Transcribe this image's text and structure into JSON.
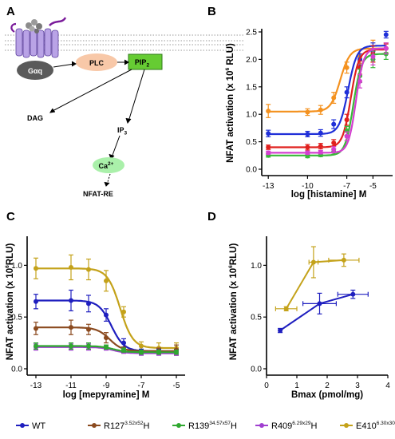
{
  "colors": {
    "WT": "#1f1fbf",
    "R127": "#8b4a1f",
    "R139": "#2fa82f",
    "R409": "#a03fd0",
    "E410": "#c4a21a",
    "orange": "#f4911e",
    "red": "#e0201e",
    "green": "#39b839",
    "magenta": "#d43fd0",
    "blue": "#1f2fd8"
  },
  "panel_A": {
    "letter": "A",
    "galpha": "Gαq",
    "plc": "PLC",
    "pip2": "PIP",
    "pip2_sub": "2",
    "dag": "DAG",
    "ip3": "IP",
    "ip3_sub": "3",
    "ca": "Ca",
    "ca_sup": "2+",
    "nfat": "NFAT-RE"
  },
  "panel_B": {
    "letter": "B",
    "ylabel_pre": "NFAT activation (x 10",
    "ylabel_sup": "6",
    "ylabel_post": " RLU)",
    "xlabel": "log [histamine] M"
  },
  "panel_C": {
    "letter": "C",
    "ylabel_pre": "NFAT activation (x 10",
    "ylabel_sup": "6",
    "ylabel_post": "RLU)",
    "xlabel": "log [mepyramine] M"
  },
  "panel_D": {
    "letter": "D",
    "ylabel_pre": "NFAT activation (x 10",
    "ylabel_sup": "6",
    "ylabel_post": "RLU)",
    "xlabel": "Bmax (pmol/mg)"
  },
  "legend": [
    {
      "base": "WT",
      "sup": "",
      "suffix": "",
      "color_key": "WT"
    },
    {
      "base": "R127",
      "sup": "3.52x52",
      "suffix": "H",
      "color_key": "R127"
    },
    {
      "base": "R139",
      "sup": "34.57x57",
      "suffix": "H",
      "color_key": "R139"
    },
    {
      "base": "R409",
      "sup": "6.29x29",
      "suffix": "H",
      "color_key": "R409"
    },
    {
      "base": "E410",
      "sup": "6.30x30",
      "suffix": "K",
      "color_key": "E410"
    }
  ],
  "chart_data": [
    {
      "panel": "B",
      "type": "line",
      "xlabel": "log [histamine] M",
      "ylabel": "NFAT activation (x 10^6 RLU)",
      "xlim": [
        -13.5,
        -3.5
      ],
      "ylim": [
        0,
        2.5
      ],
      "xticks": [
        -13,
        -10,
        -7,
        -5
      ],
      "yticks": [
        0,
        0.5,
        1.0,
        1.5,
        2.0,
        2.5
      ],
      "series": [
        {
          "color_key": "orange",
          "x": [
            -13,
            -10,
            -9,
            -8,
            -7,
            -6,
            -5,
            -4
          ],
          "y": [
            1.06,
            1.04,
            1.08,
            1.3,
            1.85,
            2.05,
            2.15,
            2.2
          ],
          "err": [
            0.12,
            0.06,
            0.08,
            0.1,
            0.1,
            0.12,
            0.2,
            0.1
          ],
          "fit": {
            "bottom": 1.05,
            "top": 2.2,
            "logEC50": -7.5,
            "hill": 1.2
          }
        },
        {
          "color_key": "blue",
          "x": [
            -13,
            -10,
            -9,
            -8,
            -7,
            -6,
            -5,
            -4
          ],
          "y": [
            0.65,
            0.64,
            0.66,
            0.82,
            1.4,
            2.0,
            2.15,
            2.45
          ],
          "err": [
            0.06,
            0.05,
            0.06,
            0.08,
            0.1,
            0.1,
            0.15,
            0.06
          ],
          "fit": {
            "bottom": 0.64,
            "top": 2.25,
            "logEC50": -6.9,
            "hill": 1.3
          }
        },
        {
          "color_key": "red",
          "x": [
            -13,
            -10,
            -9,
            -8,
            -7,
            -6,
            -5,
            -4
          ],
          "y": [
            0.4,
            0.4,
            0.42,
            0.48,
            0.9,
            1.85,
            2.1,
            2.2
          ],
          "err": [
            0.04,
            0.05,
            0.05,
            0.06,
            0.1,
            0.12,
            0.15,
            0.08
          ],
          "fit": {
            "bottom": 0.4,
            "top": 2.18,
            "logEC50": -6.7,
            "hill": 1.4
          }
        },
        {
          "color_key": "green",
          "x": [
            -13,
            -10,
            -9,
            -8,
            -7,
            -6,
            -5,
            -4
          ],
          "y": [
            0.25,
            0.24,
            0.26,
            0.32,
            0.7,
            1.7,
            2.0,
            2.1
          ],
          "err": [
            0.03,
            0.03,
            0.03,
            0.05,
            0.08,
            0.12,
            0.15,
            0.1
          ],
          "fit": {
            "bottom": 0.25,
            "top": 2.1,
            "logEC50": -6.5,
            "hill": 1.4
          }
        },
        {
          "color_key": "magenta",
          "x": [
            -13,
            -10,
            -9,
            -8,
            -7,
            -6,
            -5,
            -4
          ],
          "y": [
            0.3,
            0.3,
            0.31,
            0.36,
            0.6,
            1.6,
            2.05,
            2.2
          ],
          "err": [
            0.03,
            0.03,
            0.03,
            0.05,
            0.08,
            0.12,
            0.15,
            0.1
          ],
          "fit": {
            "bottom": 0.3,
            "top": 2.2,
            "logEC50": -6.3,
            "hill": 1.5
          }
        }
      ]
    },
    {
      "panel": "C",
      "type": "line",
      "xlabel": "log [mepyramine] M",
      "ylabel": "NFAT activation (x 10^6 RLU)",
      "xlim": [
        -13.5,
        -4.5
      ],
      "ylim": [
        0,
        1.25
      ],
      "xticks": [
        -13,
        -11,
        -9,
        -7,
        -5
      ],
      "yticks": [
        0.0,
        0.5,
        1.0
      ],
      "series": [
        {
          "color_key": "E410",
          "x": [
            -13,
            -11,
            -10,
            -9,
            -8,
            -7,
            -6,
            -5
          ],
          "y": [
            0.97,
            0.98,
            0.96,
            0.85,
            0.55,
            0.22,
            0.2,
            0.2
          ],
          "err": [
            0.1,
            0.12,
            0.1,
            0.1,
            0.05,
            0.04,
            0.05,
            0.05
          ],
          "fit": {
            "bottom": 0.2,
            "top": 0.97,
            "logEC50": -8.2,
            "hill": -1.2
          }
        },
        {
          "color_key": "WT",
          "x": [
            -13,
            -11,
            -10,
            -9,
            -8,
            -7,
            -6,
            -5
          ],
          "y": [
            0.65,
            0.66,
            0.63,
            0.52,
            0.25,
            0.17,
            0.17,
            0.17
          ],
          "err": [
            0.07,
            0.1,
            0.08,
            0.06,
            0.04,
            0.02,
            0.02,
            0.02
          ],
          "fit": {
            "bottom": 0.17,
            "top": 0.66,
            "logEC50": -8.7,
            "hill": -1.2
          }
        },
        {
          "color_key": "R127",
          "x": [
            -13,
            -11,
            -10,
            -9,
            -8,
            -7,
            -6,
            -5
          ],
          "y": [
            0.39,
            0.4,
            0.38,
            0.3,
            0.18,
            0.16,
            0.17,
            0.18
          ],
          "err": [
            0.06,
            0.07,
            0.05,
            0.05,
            0.03,
            0.02,
            0.03,
            0.05
          ],
          "fit": {
            "bottom": 0.17,
            "top": 0.4,
            "logEC50": -8.8,
            "hill": -1.2
          }
        },
        {
          "color_key": "R409",
          "x": [
            -13,
            -11,
            -10,
            -9,
            -8,
            -7,
            -6,
            -5
          ],
          "y": [
            0.21,
            0.21,
            0.21,
            0.2,
            0.17,
            0.15,
            0.15,
            0.15
          ],
          "err": [
            0.03,
            0.03,
            0.03,
            0.02,
            0.02,
            0.02,
            0.02,
            0.02
          ],
          "fit": {
            "bottom": 0.15,
            "top": 0.21,
            "logEC50": -8.6,
            "hill": -1.2
          }
        },
        {
          "color_key": "R139",
          "x": [
            -13,
            -11,
            -10,
            -9,
            -8,
            -7,
            -6,
            -5
          ],
          "y": [
            0.22,
            0.22,
            0.22,
            0.21,
            0.18,
            0.16,
            0.16,
            0.16
          ],
          "err": [
            0.03,
            0.03,
            0.03,
            0.02,
            0.02,
            0.02,
            0.02,
            0.02
          ],
          "fit": {
            "bottom": 0.16,
            "top": 0.22,
            "logEC50": -8.6,
            "hill": -1.2
          }
        }
      ]
    },
    {
      "panel": "D",
      "type": "line",
      "xlabel": "Bmax (pmol/mg)",
      "ylabel": "NFAT activation (x 10^6 RLU)",
      "xlim": [
        0,
        4
      ],
      "ylim": [
        0,
        1.25
      ],
      "xticks": [
        0,
        1,
        2,
        3,
        4
      ],
      "yticks": [
        0.0,
        0.5,
        1.0
      ],
      "series": [
        {
          "color_key": "E410",
          "x": [
            0.65,
            1.55,
            2.55
          ],
          "y": [
            0.58,
            1.03,
            1.05
          ],
          "xerr": [
            0.35,
            0.15,
            0.5
          ],
          "yerr": [
            0.02,
            0.15,
            0.06
          ]
        },
        {
          "color_key": "WT",
          "x": [
            0.45,
            1.75,
            2.85
          ],
          "y": [
            0.37,
            0.63,
            0.72
          ],
          "xerr": [
            0.05,
            0.55,
            0.5
          ],
          "yerr": [
            0.02,
            0.1,
            0.04
          ]
        }
      ]
    }
  ]
}
